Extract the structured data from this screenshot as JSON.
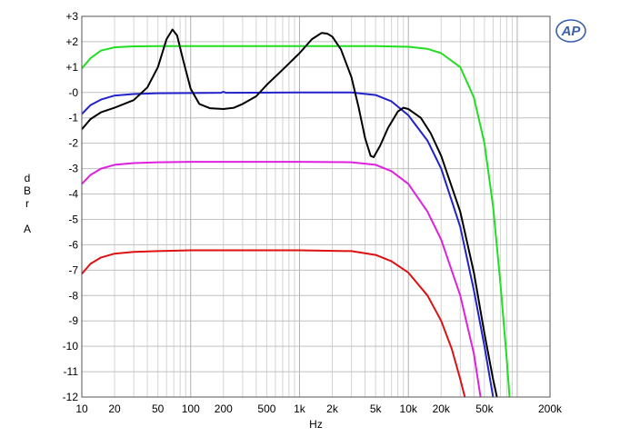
{
  "chart_data": {
    "type": "line",
    "xscale": "log",
    "xlim": [
      10,
      200000
    ],
    "ylim": [
      -12,
      3
    ],
    "grid": true,
    "xlabel": "Hz",
    "ylabel": [
      "d",
      "B",
      "r",
      "",
      "A"
    ],
    "x_ticks": [
      {
        "value": 10,
        "label": "10"
      },
      {
        "value": 20,
        "label": "20"
      },
      {
        "value": 50,
        "label": "50"
      },
      {
        "value": 100,
        "label": "100"
      },
      {
        "value": 200,
        "label": "200"
      },
      {
        "value": 500,
        "label": "500"
      },
      {
        "value": 1000,
        "label": "1k"
      },
      {
        "value": 2000,
        "label": "2k"
      },
      {
        "value": 5000,
        "label": "5k"
      },
      {
        "value": 10000,
        "label": "10k"
      },
      {
        "value": 20000,
        "label": "20k"
      },
      {
        "value": 50000,
        "label": "50k"
      },
      {
        "value": 200000,
        "label": "200k"
      }
    ],
    "y_ticks": [
      {
        "value": 3,
        "label": "+3"
      },
      {
        "value": 2,
        "label": "+2"
      },
      {
        "value": 1,
        "label": "+1"
      },
      {
        "value": 0,
        "label": "-0"
      },
      {
        "value": -1,
        "label": "-1"
      },
      {
        "value": -2,
        "label": "-2"
      },
      {
        "value": -3,
        "label": "-3"
      },
      {
        "value": -4,
        "label": "-4"
      },
      {
        "value": -5,
        "label": "-5"
      },
      {
        "value": -6,
        "label": "-6"
      },
      {
        "value": -7,
        "label": "-7"
      },
      {
        "value": -8,
        "label": "-8"
      },
      {
        "value": -9,
        "label": "-9"
      },
      {
        "value": -10,
        "label": "-10"
      },
      {
        "value": -11,
        "label": "-11"
      },
      {
        "value": -12,
        "label": "-12"
      }
    ],
    "series": [
      {
        "color": "#22dd22",
        "points": [
          [
            10,
            0.95
          ],
          [
            12,
            1.35
          ],
          [
            15,
            1.65
          ],
          [
            20,
            1.78
          ],
          [
            30,
            1.82
          ],
          [
            50,
            1.83
          ],
          [
            100,
            1.83
          ],
          [
            1000,
            1.83
          ],
          [
            5000,
            1.83
          ],
          [
            10000,
            1.8
          ],
          [
            15000,
            1.72
          ],
          [
            20000,
            1.55
          ],
          [
            30000,
            1.0
          ],
          [
            40000,
            -0.2
          ],
          [
            50000,
            -2.0
          ],
          [
            60000,
            -4.5
          ],
          [
            70000,
            -7.5
          ],
          [
            80000,
            -10.5
          ],
          [
            85000,
            -12
          ]
        ]
      },
      {
        "color": "#2222cc",
        "points": [
          [
            10,
            -0.85
          ],
          [
            12,
            -0.5
          ],
          [
            15,
            -0.28
          ],
          [
            20,
            -0.12
          ],
          [
            30,
            -0.06
          ],
          [
            50,
            -0.03
          ],
          [
            100,
            -0.02
          ],
          [
            190,
            -0.01
          ],
          [
            200,
            0.03
          ],
          [
            210,
            -0.01
          ],
          [
            1000,
            0
          ],
          [
            3000,
            0
          ],
          [
            5000,
            -0.1
          ],
          [
            7000,
            -0.35
          ],
          [
            10000,
            -0.9
          ],
          [
            15000,
            -1.9
          ],
          [
            20000,
            -3.0
          ],
          [
            30000,
            -5.3
          ],
          [
            40000,
            -7.8
          ],
          [
            50000,
            -10.0
          ],
          [
            60000,
            -12
          ]
        ]
      },
      {
        "color": "#dd22dd",
        "points": [
          [
            10,
            -3.6
          ],
          [
            12,
            -3.25
          ],
          [
            15,
            -3.0
          ],
          [
            20,
            -2.85
          ],
          [
            30,
            -2.78
          ],
          [
            50,
            -2.75
          ],
          [
            100,
            -2.73
          ],
          [
            1000,
            -2.73
          ],
          [
            3000,
            -2.75
          ],
          [
            5000,
            -2.85
          ],
          [
            7000,
            -3.1
          ],
          [
            10000,
            -3.6
          ],
          [
            15000,
            -4.7
          ],
          [
            20000,
            -5.8
          ],
          [
            30000,
            -8.0
          ],
          [
            40000,
            -10.3
          ],
          [
            46000,
            -12
          ]
        ]
      },
      {
        "color": "#dd1111",
        "points": [
          [
            10,
            -7.15
          ],
          [
            12,
            -6.75
          ],
          [
            15,
            -6.5
          ],
          [
            20,
            -6.35
          ],
          [
            30,
            -6.28
          ],
          [
            50,
            -6.25
          ],
          [
            100,
            -6.22
          ],
          [
            1000,
            -6.22
          ],
          [
            3000,
            -6.25
          ],
          [
            5000,
            -6.4
          ],
          [
            7000,
            -6.65
          ],
          [
            10000,
            -7.1
          ],
          [
            15000,
            -8.0
          ],
          [
            20000,
            -9.0
          ],
          [
            25000,
            -10.1
          ],
          [
            30000,
            -11.3
          ],
          [
            33000,
            -12
          ]
        ]
      },
      {
        "color": "#000000",
        "points": [
          [
            10,
            -1.45
          ],
          [
            12,
            -1.05
          ],
          [
            15,
            -0.78
          ],
          [
            20,
            -0.6
          ],
          [
            30,
            -0.3
          ],
          [
            40,
            0.2
          ],
          [
            50,
            1.0
          ],
          [
            60,
            2.1
          ],
          [
            68,
            2.48
          ],
          [
            75,
            2.25
          ],
          [
            85,
            1.3
          ],
          [
            100,
            0.15
          ],
          [
            120,
            -0.45
          ],
          [
            150,
            -0.62
          ],
          [
            200,
            -0.65
          ],
          [
            250,
            -0.6
          ],
          [
            300,
            -0.45
          ],
          [
            400,
            -0.15
          ],
          [
            500,
            0.3
          ],
          [
            700,
            0.9
          ],
          [
            1000,
            1.55
          ],
          [
            1300,
            2.1
          ],
          [
            1600,
            2.35
          ],
          [
            1800,
            2.32
          ],
          [
            2000,
            2.2
          ],
          [
            2400,
            1.7
          ],
          [
            3000,
            0.6
          ],
          [
            3500,
            -0.6
          ],
          [
            4000,
            -1.8
          ],
          [
            4500,
            -2.5
          ],
          [
            4800,
            -2.55
          ],
          [
            5500,
            -2.1
          ],
          [
            6500,
            -1.4
          ],
          [
            8000,
            -0.75
          ],
          [
            9000,
            -0.6
          ],
          [
            10000,
            -0.65
          ],
          [
            13000,
            -1.0
          ],
          [
            16000,
            -1.6
          ],
          [
            20000,
            -2.5
          ],
          [
            30000,
            -4.7
          ],
          [
            40000,
            -7.1
          ],
          [
            50000,
            -9.5
          ],
          [
            60000,
            -11.3
          ],
          [
            65000,
            -12
          ]
        ]
      }
    ]
  },
  "logo": {
    "text": "AP"
  }
}
